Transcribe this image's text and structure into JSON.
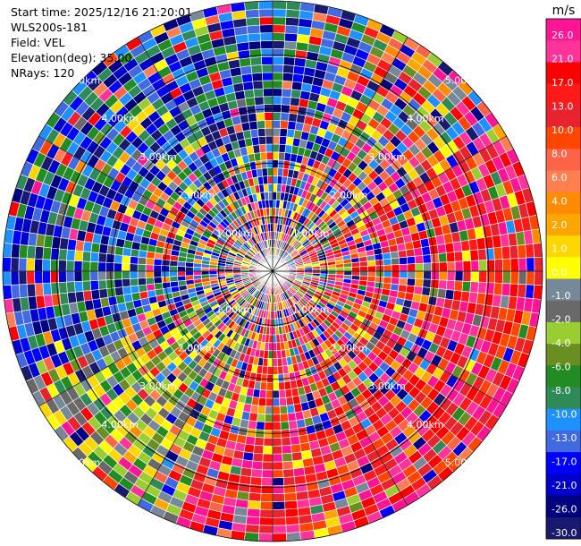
{
  "header": {
    "start_time": "Start time: 2025/12/16 21:20:01",
    "instrument": "WLS200s-181",
    "field": "Field: VEL",
    "elevation": "Elevation(deg): 35.00",
    "nrays": "NRays: 120"
  },
  "chart_data": {
    "type": "heatmap",
    "subtype": "polar-ppi",
    "field": "VEL",
    "n_rays": 120,
    "range_labels": [
      "1.00km",
      "2.00km",
      "3.00km",
      "4.00km",
      "5.00km"
    ],
    "range_ring_values_km": [
      1,
      2,
      3,
      4,
      5
    ],
    "max_range_km": 5.0,
    "colorbar": {
      "unit": "m/s",
      "tick_labels": [
        "26.0",
        "21.0",
        "17.0",
        "13.0",
        "10.0",
        "8.0",
        "6.0",
        "4.0",
        "2.0",
        "1.0",
        "0.0",
        "-1.0",
        "-2.0",
        "-4.0",
        "-6.0",
        "-8.0",
        "-10.0",
        "-13.0",
        "-17.0",
        "-21.0",
        "-26.0",
        "-30.0"
      ],
      "colors": [
        "#ff1493",
        "#ff3399",
        "#ff0000",
        "#ff1a1a",
        "#e8232e",
        "#ff4500",
        "#ff6347",
        "#ff7f50",
        "#ff8c00",
        "#ffa500",
        "#ffd700",
        "#ffff00",
        "#778899",
        "#696969",
        "#9acd32",
        "#6b8e23",
        "#228b22",
        "#2e8b57",
        "#1e90ff",
        "#4169e1",
        "#0000ff",
        "#0000cd",
        "#000080",
        "#191970"
      ]
    },
    "description_sectors": {
      "dominant_positive": "south-east and east (pink/red/orange)",
      "dominant_negative": "north-west and west (blue)",
      "near_zero": "south-west (green/olive)"
    }
  }
}
